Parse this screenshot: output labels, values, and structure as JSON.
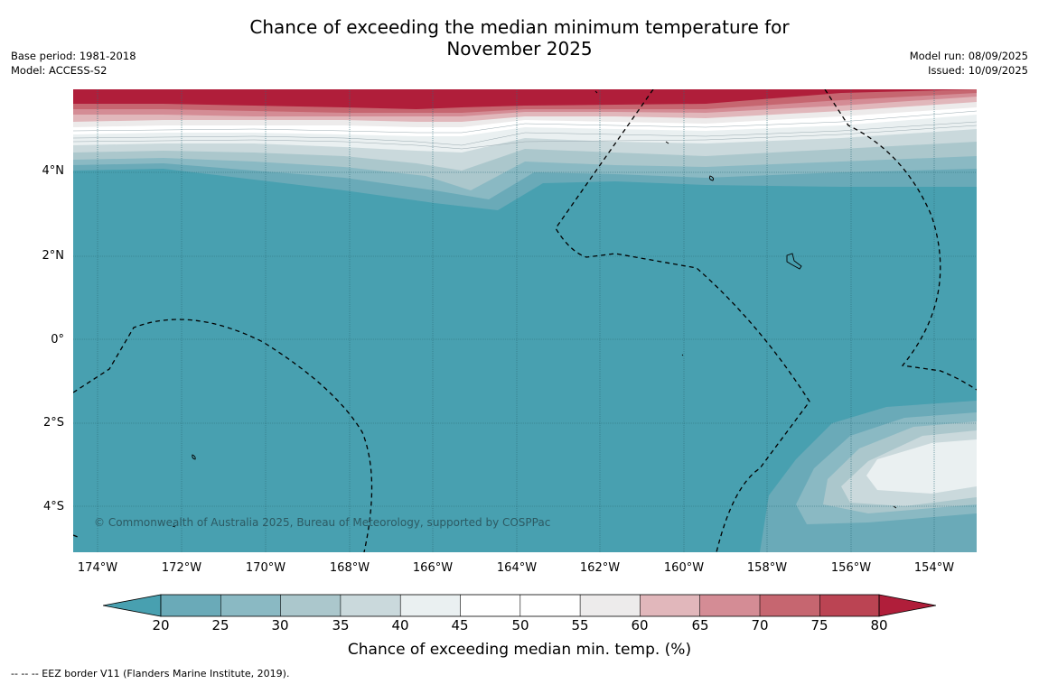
{
  "title": "Chance of exceeding the median minimum temperature for\nNovember 2025",
  "title_line1": "Chance of exceeding the median minimum temperature for",
  "title_line2": "November 2025",
  "meta_left": {
    "base_period": "Base period: 1981-2018",
    "model": "Model: ACCESS-S2"
  },
  "meta_right": {
    "model_run": "Model run: 08/09/2025",
    "issued": "Issued: 10/09/2025"
  },
  "map": {
    "lat_labels": [
      "4°N",
      "2°N",
      "0°",
      "2°S",
      "4°S"
    ],
    "lon_labels": [
      "174°W",
      "172°W",
      "170°W",
      "168°W",
      "166°W",
      "164°W",
      "162°W",
      "160°W",
      "158°W",
      "156°W",
      "154°W"
    ],
    "copyright": "© Commonwealth of Australia 2025, Bureau of Meteorology, supported by COSPPac",
    "base_color": "#48A0B0"
  },
  "colorbar": {
    "ticks": [
      "20",
      "25",
      "30",
      "35",
      "40",
      "45",
      "50",
      "55",
      "60",
      "65",
      "70",
      "75",
      "80"
    ],
    "colors": {
      "below_20": "#48A0B0",
      "20_25": "#6AAAB8",
      "25_30": "#8AB9C3",
      "30_35": "#ABC7CC",
      "35_40": "#CAD9DC",
      "40_45": "#EAF0F1",
      "45_50": "#FFFFFF",
      "50_55": "#FFFFFF",
      "55_60": "#EDEBEB",
      "60_65": "#E1B7BB",
      "65_70": "#D48C95",
      "70_75": "#C66670",
      "75_80": "#BB4453",
      "above_80": "#B01E3A"
    },
    "label": "Chance of exceeding median min. temp. (%)"
  },
  "footer": "--  --  -- EEZ border V11 (Flanders Marine Institute, 2019)."
}
